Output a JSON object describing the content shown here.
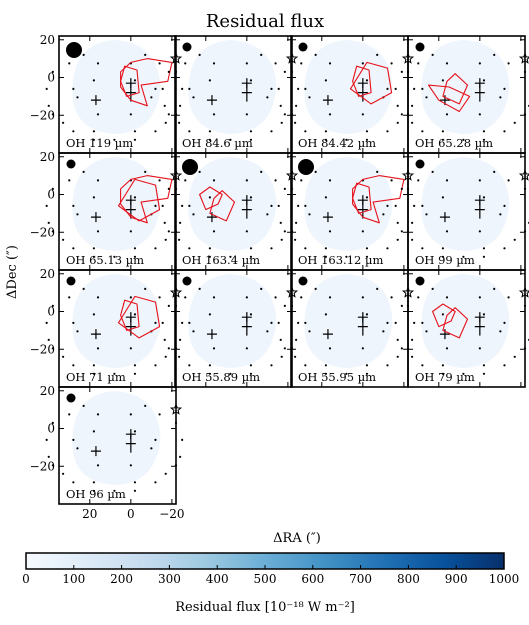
{
  "figure": {
    "title": "Residual flux",
    "xlabel": "ΔRA (″)",
    "ylabel": "ΔDec (″)"
  },
  "chart_data": {
    "type": "heatmap",
    "title": "Residual flux",
    "xlabel": "ΔRA (″)",
    "ylabel": "ΔDec (″)",
    "xlim": [
      35,
      -22
    ],
    "ylim": [
      -40,
      22
    ],
    "x_ticks": [
      20,
      0,
      -20
    ],
    "y_ticks": [
      20,
      0,
      -20
    ],
    "colorbar": {
      "label": "Residual flux [10⁻¹⁸ W m⁻²]",
      "range": [
        0,
        1000
      ],
      "ticks": [
        0,
        100,
        200,
        300,
        400,
        500,
        600,
        700,
        800,
        900,
        1000
      ],
      "colors": [
        "#f7fbff",
        "#deebf7",
        "#c6dbef",
        "#9ecae1",
        "#6baed6",
        "#4292c6",
        "#2171b5",
        "#08519c",
        "#08306b"
      ]
    },
    "grid": false,
    "panels": [
      {
        "label": "OH 119 µm",
        "beam": "large",
        "contours": true
      },
      {
        "label": "OH 84.6 µm",
        "beam": "small",
        "contours": false
      },
      {
        "label": "OH 84.42 µm",
        "beam": "small",
        "contours": true
      },
      {
        "label": "OH 65.28 µm",
        "beam": "small",
        "contours": true
      },
      {
        "label": "OH 65.13 µm",
        "beam": "small",
        "contours": true
      },
      {
        "label": "OH 163.4 µm",
        "beam": "large",
        "contours": true
      },
      {
        "label": "OH 163.12 µm",
        "beam": "large",
        "contours": true
      },
      {
        "label": "OH 99 µm",
        "beam": "small",
        "contours": false
      },
      {
        "label": "OH 71 µm",
        "beam": "small",
        "contours": true
      },
      {
        "label": "OH 55.89 µm",
        "beam": "small",
        "contours": false
      },
      {
        "label": "OH 55.95 µm",
        "beam": "small",
        "contours": false
      },
      {
        "label": "OH 79 µm",
        "beam": "small",
        "contours": true
      },
      {
        "label": "OH 96 µm",
        "beam": "small",
        "contours": false
      }
    ],
    "markers": {
      "crosses": [
        [
          0,
          -3
        ],
        [
          0,
          -8
        ],
        [
          17,
          -12
        ]
      ],
      "star": [
        -22,
        10
      ]
    }
  },
  "colors": {
    "contour": "#e8111b",
    "footprint": "#eef5fc",
    "axis": "#000000"
  }
}
